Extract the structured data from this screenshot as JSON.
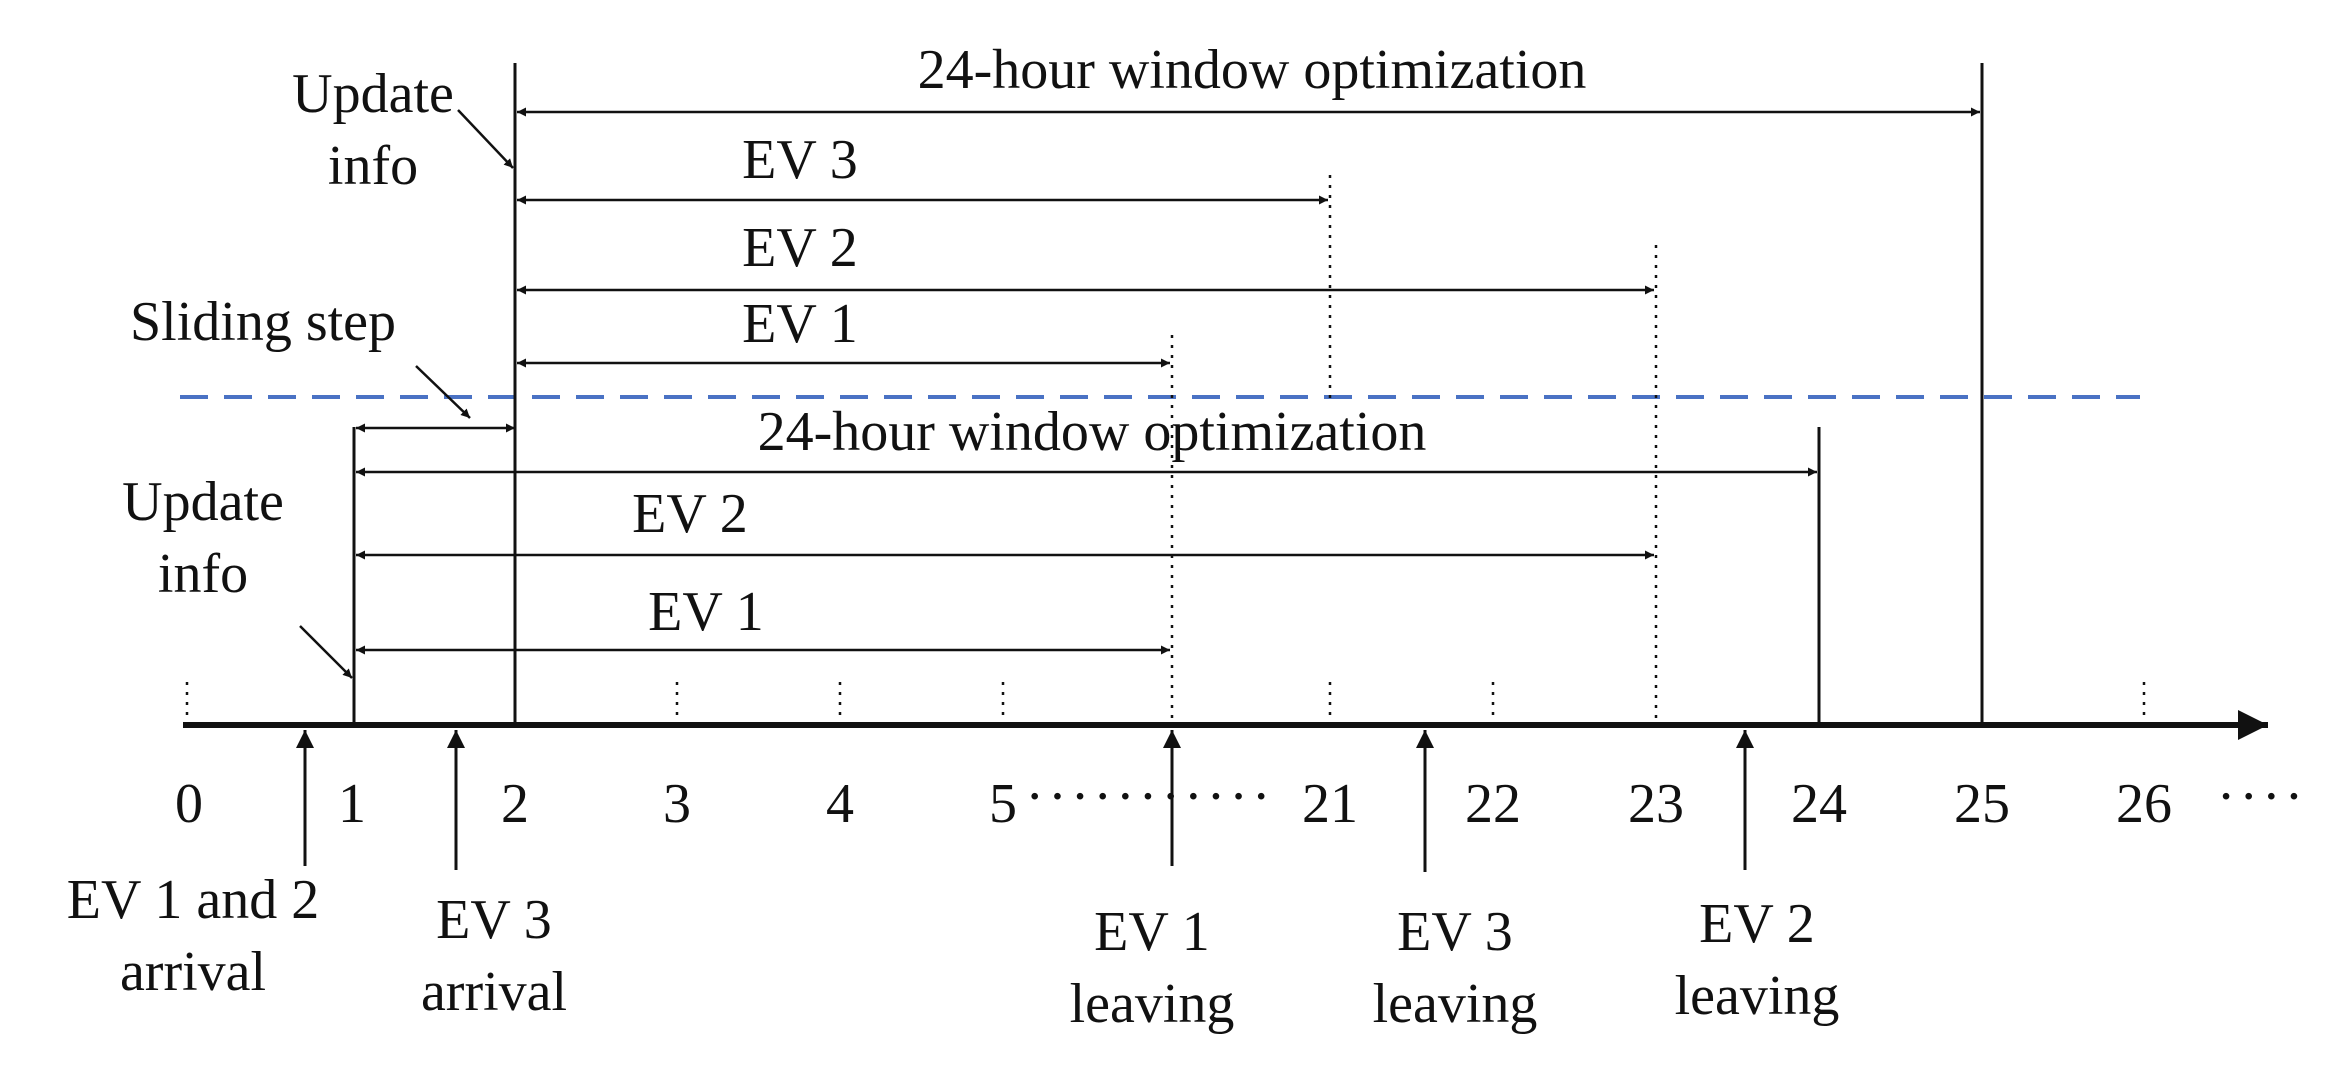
{
  "colors": {
    "divider": "#4a72c4",
    "ink": "#111111"
  },
  "axis": {
    "ticks": [
      "0",
      "1",
      "2",
      "3",
      "4",
      "5",
      "21",
      "22",
      "23",
      "24",
      "25",
      "26"
    ],
    "break_dots": "···········",
    "trail_dots": "····"
  },
  "events": [
    {
      "line1": "EV 1 and 2",
      "line2": "arrival"
    },
    {
      "line1": "EV 3",
      "line2": "arrival"
    },
    {
      "line1": "EV 1",
      "line2": "leaving"
    },
    {
      "line1": "EV 3",
      "line2": "leaving"
    },
    {
      "line1": "EV 2",
      "line2": "leaving"
    }
  ],
  "upper": {
    "window_label": "24-hour window optimization",
    "update_line1": "Update",
    "update_line2": "info",
    "bars": [
      "EV 3",
      "EV 2",
      "EV 1"
    ]
  },
  "lower": {
    "window_label": "24-hour window optimization",
    "update_line1": "Update",
    "update_line2": "info",
    "bars": [
      "EV 2",
      "EV 1"
    ],
    "sliding_step_label": "Sliding step"
  }
}
